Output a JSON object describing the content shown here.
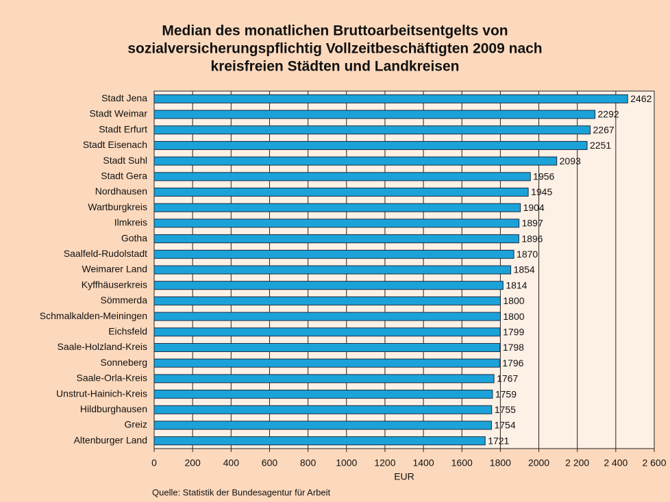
{
  "chart_data": {
    "type": "barh",
    "title": [
      "Median des monatlichen Bruttoarbeitsentgelts von",
      "sozialversicherungspflichtig Vollzeitbeschäftigten 2009 nach",
      "kreisfreien Städten und Landkreisen"
    ],
    "categories": [
      "Stadt Jena",
      "Stadt Weimar",
      "Stadt Erfurt",
      "Stadt Eisenach",
      "Stadt Suhl",
      "Stadt Gera",
      "Nordhausen",
      "Wartburgkreis",
      "Ilmkreis",
      "Gotha",
      "Saalfeld-Rudolstadt",
      "Weimarer Land",
      "Kyffhäuserkreis",
      "Sömmerda",
      "Schmalkalden-Meiningen",
      "Eichsfeld",
      "Saale-Holzland-Kreis",
      "Sonneberg",
      "Saale-Orla-Kreis",
      "Unstrut-Hainich-Kreis",
      "Hildburghausen",
      "Greiz",
      "Altenburger Land"
    ],
    "values": [
      2462,
      2292,
      2267,
      2251,
      2093,
      1956,
      1945,
      1904,
      1897,
      1896,
      1870,
      1854,
      1814,
      1800,
      1800,
      1799,
      1798,
      1796,
      1767,
      1759,
      1755,
      1754,
      1721
    ],
    "color": "#1ba3d9",
    "xlim": [
      0,
      2600
    ],
    "xticks": [
      0,
      200,
      400,
      600,
      800,
      1000,
      1200,
      1400,
      1600,
      1800,
      2000,
      {
        "value": 2200,
        "label": "2 200"
      },
      {
        "value": 2400,
        "label": "2 400"
      },
      {
        "value": 2600,
        "label": "2 600"
      }
    ],
    "xlabel": "EUR",
    "grid": true,
    "source": "Quelle: Statistik der Bundesagentur für Arbeit"
  }
}
